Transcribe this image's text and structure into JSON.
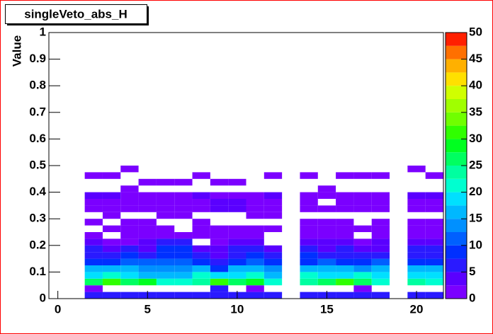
{
  "chart_data": {
    "type": "heatmap",
    "title": "singleVeto_abs_H",
    "y_label": "Value",
    "x": [
      0,
      1,
      2,
      3,
      4,
      5,
      6,
      7,
      8,
      9,
      10,
      11,
      12,
      13,
      14,
      15,
      16,
      17,
      18,
      19,
      20,
      21
    ],
    "ybins": [
      0,
      0.025,
      0.05,
      0.075,
      0.1,
      0.125,
      0.15,
      0.175,
      0.2,
      0.225,
      0.25,
      0.275,
      0.3,
      0.325,
      0.35,
      0.375,
      0.4,
      0.425,
      0.45,
      0.475,
      0.5
    ],
    "values": [
      [
        0,
        0,
        7,
        7,
        7,
        7,
        7,
        7,
        7,
        6,
        7,
        7,
        7,
        0,
        7,
        7,
        7,
        7,
        7,
        0,
        7,
        7
      ],
      [
        0,
        0,
        1,
        0,
        0,
        0,
        0,
        0,
        0,
        5,
        0,
        1,
        0,
        0,
        0,
        0,
        0,
        1,
        0,
        0,
        0,
        0
      ],
      [
        0,
        0,
        25,
        30,
        26,
        28,
        22,
        20,
        24,
        30,
        26,
        28,
        20,
        0,
        24,
        26,
        30,
        25,
        21,
        0,
        24,
        22
      ],
      [
        0,
        0,
        19,
        20,
        18,
        17,
        16,
        17,
        20,
        18,
        19,
        20,
        17,
        0,
        20,
        19,
        18,
        21,
        18,
        0,
        19,
        18
      ],
      [
        0,
        0,
        16,
        15,
        17,
        14,
        13,
        14,
        16,
        8,
        15,
        16,
        14,
        0,
        17,
        16,
        15,
        14,
        16,
        0,
        16,
        15
      ],
      [
        0,
        0,
        9,
        8,
        10,
        11,
        12,
        12,
        8,
        6,
        9,
        10,
        8,
        0,
        9,
        10,
        8,
        9,
        10,
        0,
        9,
        8
      ],
      [
        0,
        0,
        7,
        6,
        8,
        5,
        9,
        9,
        7,
        4,
        6,
        8,
        6,
        0,
        8,
        7,
        6,
        5,
        7,
        0,
        6,
        7
      ],
      [
        0,
        0,
        5,
        4,
        6,
        4,
        8,
        8,
        3,
        4,
        5,
        6,
        3,
        0,
        5,
        4,
        5,
        4,
        4,
        0,
        5,
        6
      ],
      [
        0,
        0,
        3,
        2,
        2,
        3,
        6,
        6,
        0,
        2,
        3,
        4,
        0,
        0,
        4,
        3,
        3,
        2,
        3,
        0,
        3,
        3
      ],
      [
        0,
        0,
        2,
        0,
        2,
        2,
        1,
        1,
        2,
        1,
        2,
        2,
        0,
        0,
        2,
        2,
        2,
        0,
        2,
        0,
        2,
        2
      ],
      [
        0,
        0,
        0,
        1,
        1,
        1,
        2,
        0,
        1,
        1,
        1,
        1,
        1,
        0,
        1,
        2,
        1,
        1,
        1,
        0,
        1,
        1
      ],
      [
        0,
        0,
        1,
        0,
        1,
        1,
        0,
        0,
        1,
        0,
        0,
        0,
        0,
        0,
        1,
        1,
        1,
        0,
        1,
        0,
        1,
        1
      ],
      [
        0,
        0,
        0,
        1,
        0,
        0,
        1,
        1,
        0,
        0,
        0,
        1,
        1,
        0,
        0,
        0,
        0,
        0,
        0,
        0,
        0,
        0
      ],
      [
        0,
        0,
        2,
        2,
        2,
        2,
        2,
        2,
        2,
        3,
        3,
        2,
        2,
        0,
        2,
        1,
        2,
        2,
        2,
        0,
        2,
        2
      ],
      [
        0,
        0,
        2,
        2,
        1,
        2,
        2,
        2,
        1,
        3,
        3,
        2,
        2,
        0,
        2,
        0,
        2,
        2,
        2,
        0,
        2,
        2
      ],
      [
        0,
        0,
        3,
        3,
        2,
        2,
        2,
        2,
        3,
        2,
        1,
        1,
        3,
        0,
        2,
        1,
        2,
        2,
        2,
        0,
        3,
        3
      ],
      [
        0,
        0,
        0,
        0,
        1,
        0,
        0,
        0,
        0,
        0,
        0,
        0,
        0,
        0,
        0,
        1,
        0,
        0,
        0,
        0,
        0,
        0
      ],
      [
        0,
        0,
        0,
        0,
        0,
        1,
        1,
        1,
        0,
        1,
        1,
        0,
        0,
        0,
        0,
        0,
        0,
        0,
        0,
        0,
        0,
        0
      ],
      [
        0,
        0,
        1,
        1,
        0,
        0,
        0,
        0,
        1,
        0,
        0,
        0,
        1,
        0,
        1,
        0,
        1,
        1,
        1,
        0,
        0,
        1
      ],
      [
        0,
        0,
        0,
        0,
        1,
        0,
        0,
        0,
        0,
        0,
        0,
        0,
        0,
        0,
        0,
        0,
        0,
        0,
        0,
        0,
        1,
        0
      ]
    ],
    "xlim": [
      -0.5,
      21.5
    ],
    "xticks": [
      0,
      5,
      10,
      15,
      20
    ],
    "ylim": [
      0,
      1
    ],
    "yticks": [
      0,
      0.1,
      0.2,
      0.3,
      0.4,
      0.5,
      0.6,
      0.7,
      0.8,
      0.9,
      1
    ],
    "zlim": [
      0,
      50
    ],
    "zticks": [
      0,
      5,
      10,
      15,
      20,
      25,
      30,
      35,
      40,
      45,
      50
    ],
    "palette": [
      "#7b00ff",
      "#5a00ff",
      "#2a1aff",
      "#0030ff",
      "#0060ff",
      "#0090ff",
      "#00b8ff",
      "#00e0ff",
      "#00ffd0",
      "#00ffa0",
      "#00ff60",
      "#00ff20",
      "#30ff00",
      "#70ff00",
      "#a0ff00",
      "#d0ff00",
      "#ffe000",
      "#ffb000",
      "#ff7000",
      "#ff2000"
    ]
  }
}
